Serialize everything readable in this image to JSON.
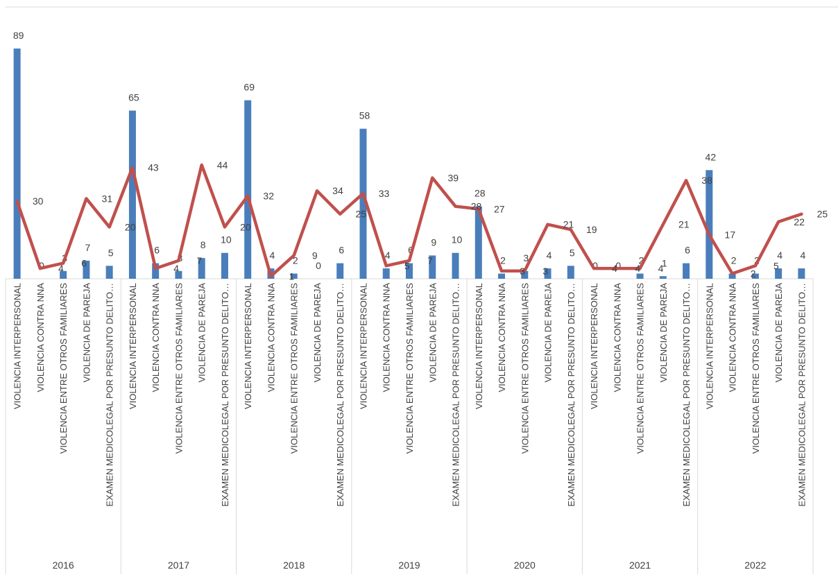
{
  "chart_data": {
    "type": "bar",
    "combo": "bar+line",
    "title": "",
    "xlabel": "",
    "ylabel": "",
    "ylim": [
      0,
      90
    ],
    "grid": false,
    "legend": "none",
    "colors": {
      "bar": "#4a7ebb",
      "line": "#c0504d",
      "axis": "#d9d9d9",
      "text": "#404040"
    },
    "subcategories": [
      "VIOLENCIA INTERPERSONAL",
      "VIOLENCIA CONTRA NNA",
      "VIOLENCIA ENTRE OTROS FAMILIARES",
      "VIOLENCIA DE PAREJA",
      "EXAMEN MEDICOLEGAL POR PRESUNTO DELITO…"
    ],
    "groups": [
      {
        "year": "2016",
        "bars": [
          89,
          0,
          3,
          7,
          5
        ],
        "line": [
          30,
          4,
          6,
          31,
          20
        ]
      },
      {
        "year": "2017",
        "bars": [
          65,
          6,
          3,
          8,
          10
        ],
        "line": [
          43,
          4,
          7,
          44,
          20
        ]
      },
      {
        "year": "2018",
        "bars": [
          69,
          4,
          2,
          0,
          6
        ],
        "line": [
          32,
          1,
          9,
          34,
          25
        ]
      },
      {
        "year": "2019",
        "bars": [
          58,
          4,
          6,
          9,
          10
        ],
        "line": [
          33,
          5,
          7,
          39,
          28
        ]
      },
      {
        "year": "2020",
        "bars": [
          28,
          2,
          3,
          4,
          5
        ],
        "line": [
          27,
          3,
          3,
          21,
          19
        ]
      },
      {
        "year": "2021",
        "bars": [
          0,
          0,
          2,
          1,
          6
        ],
        "line": [
          4,
          4,
          4,
          21,
          38
        ]
      },
      {
        "year": "2022",
        "bars": [
          42,
          2,
          2,
          4,
          4
        ],
        "line": [
          17,
          2,
          5,
          22,
          25
        ]
      }
    ]
  }
}
